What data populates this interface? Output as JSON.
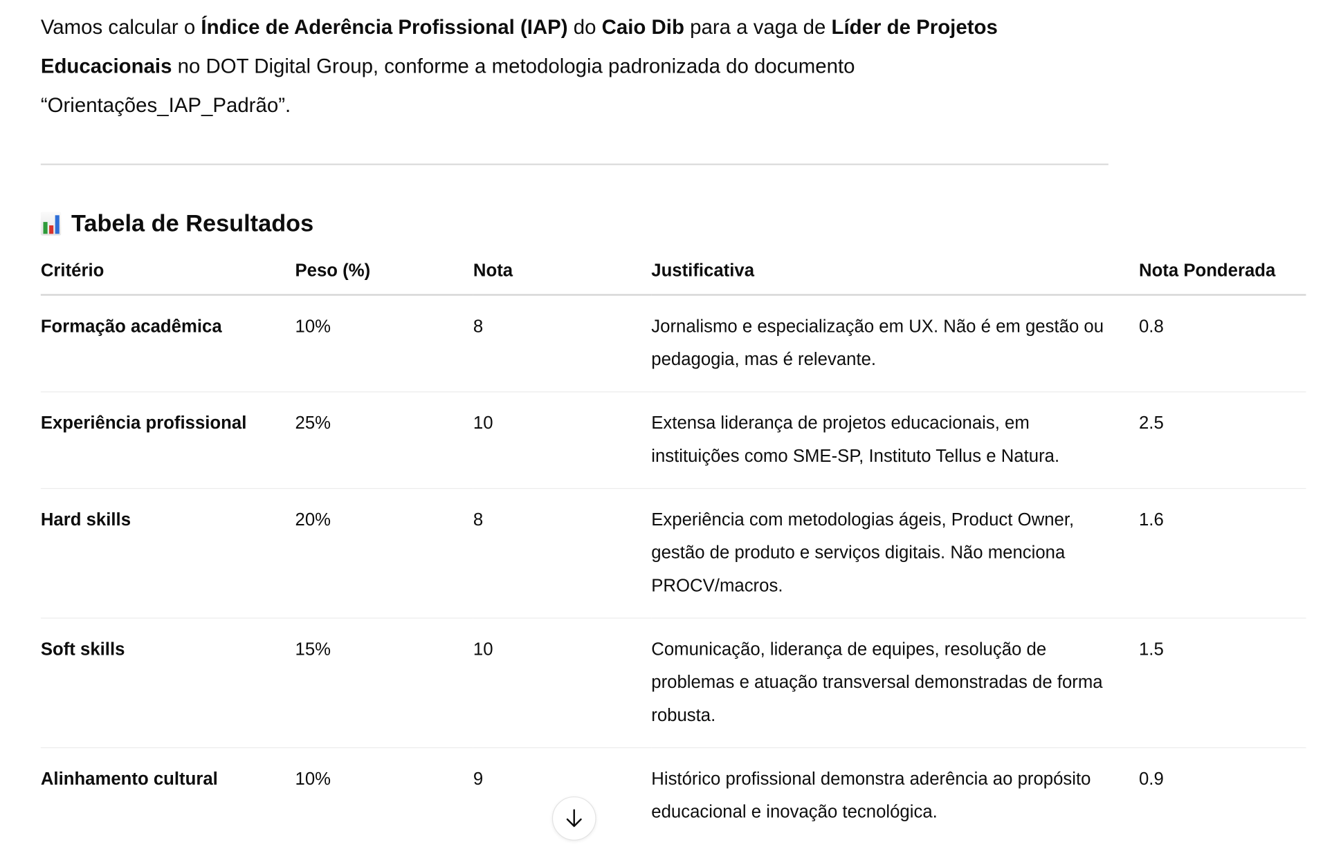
{
  "intro": [
    {
      "text": "Vamos calcular o ",
      "bold": false
    },
    {
      "text": "Índice de Aderência Profissional (IAP)",
      "bold": true
    },
    {
      "text": " do ",
      "bold": false
    },
    {
      "text": "Caio Dib",
      "bold": true
    },
    {
      "text": " para a vaga de ",
      "bold": false
    },
    {
      "text": "Líder de Projetos Educacionais",
      "bold": true
    },
    {
      "text": " no DOT Digital Group, conforme a metodologia padronizada do documento “Orientações_IAP_Padrão”.",
      "bold": false
    }
  ],
  "section": {
    "icon": "bar-chart-emoji",
    "title": "Tabela de Resultados"
  },
  "table": {
    "headers": [
      "Critério",
      "Peso (%)",
      "Nota",
      "Justificativa",
      "Nota Ponderada"
    ],
    "rows": [
      [
        "Formação acadêmica",
        "10%",
        "8",
        "Jornalismo e especialização em UX. Não é em gestão ou pedagogia, mas é relevante.",
        "0.8"
      ],
      [
        "Experiência profissional",
        "25%",
        "10",
        "Extensa liderança de projetos educacionais, em instituições como SME-SP, Instituto Tellus e Natura.",
        "2.5"
      ],
      [
        "Hard skills",
        "20%",
        "8",
        "Experiência com metodologias ágeis, Product Owner, gestão de produto e serviços digitais. Não menciona PROCV/macros.",
        "1.6"
      ],
      [
        "Soft skills",
        "15%",
        "10",
        "Comunicação, liderança de equipes, resolução de problemas e atuação transversal demonstradas de forma robusta.",
        "1.5"
      ],
      [
        "Alinhamento cultural",
        "10%",
        "9",
        "Histórico profissional demonstra aderência ao propósito educacional e inovação tecnológica.",
        "0.9"
      ]
    ]
  },
  "scroll_button": {
    "icon": "arrow-down-icon"
  }
}
